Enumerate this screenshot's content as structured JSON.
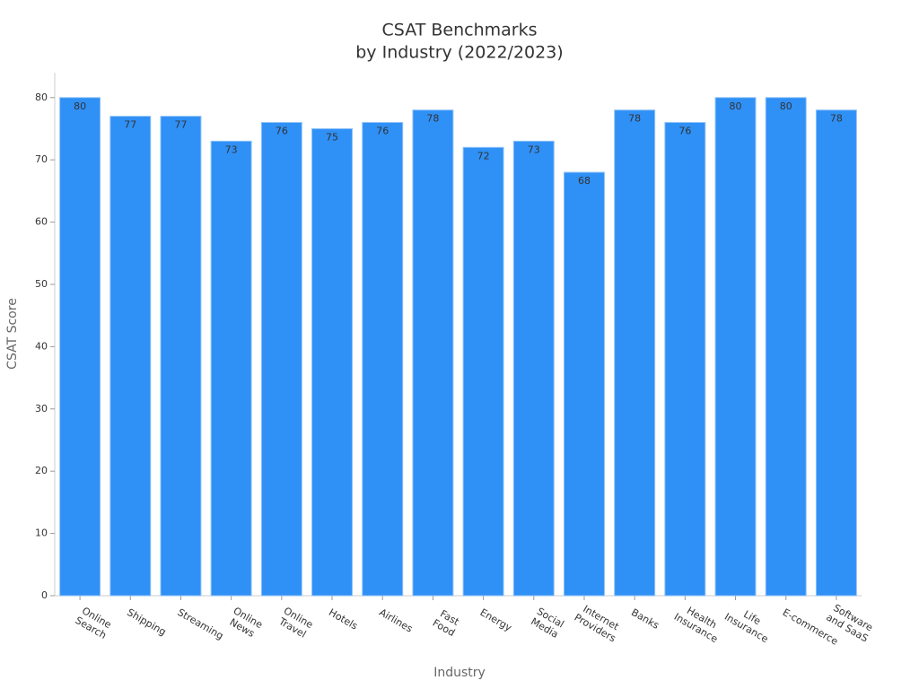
{
  "chart_data": {
    "type": "bar",
    "title": [
      "CSAT Benchmarks",
      "by Industry (2022/2023)"
    ],
    "x_label": "Industry",
    "y_label": "CSAT Score",
    "categories": [
      [
        "Online",
        "Search"
      ],
      [
        "Shipping"
      ],
      [
        "Streaming"
      ],
      [
        "Online",
        "News"
      ],
      [
        "Online",
        "Travel"
      ],
      [
        "Hotels"
      ],
      [
        "Airlines"
      ],
      [
        "Fast",
        "Food"
      ],
      [
        "Energy"
      ],
      [
        "Social",
        "Media"
      ],
      [
        "Internet",
        "Providers"
      ],
      [
        "Banks"
      ],
      [
        "Health",
        "Insurance"
      ],
      [
        "Life",
        "Insurance"
      ],
      [
        "E-commerce"
      ],
      [
        "Software",
        "and SaaS"
      ]
    ],
    "values": [
      80,
      77,
      77,
      73,
      76,
      75,
      76,
      78,
      72,
      73,
      68,
      78,
      76,
      80,
      80,
      78
    ],
    "color": "#2f90f6",
    "ylim": [
      0,
      84
    ],
    "yticks": [
      0,
      10,
      20,
      30,
      40,
      50,
      60,
      70,
      80
    ],
    "grid": false
  }
}
